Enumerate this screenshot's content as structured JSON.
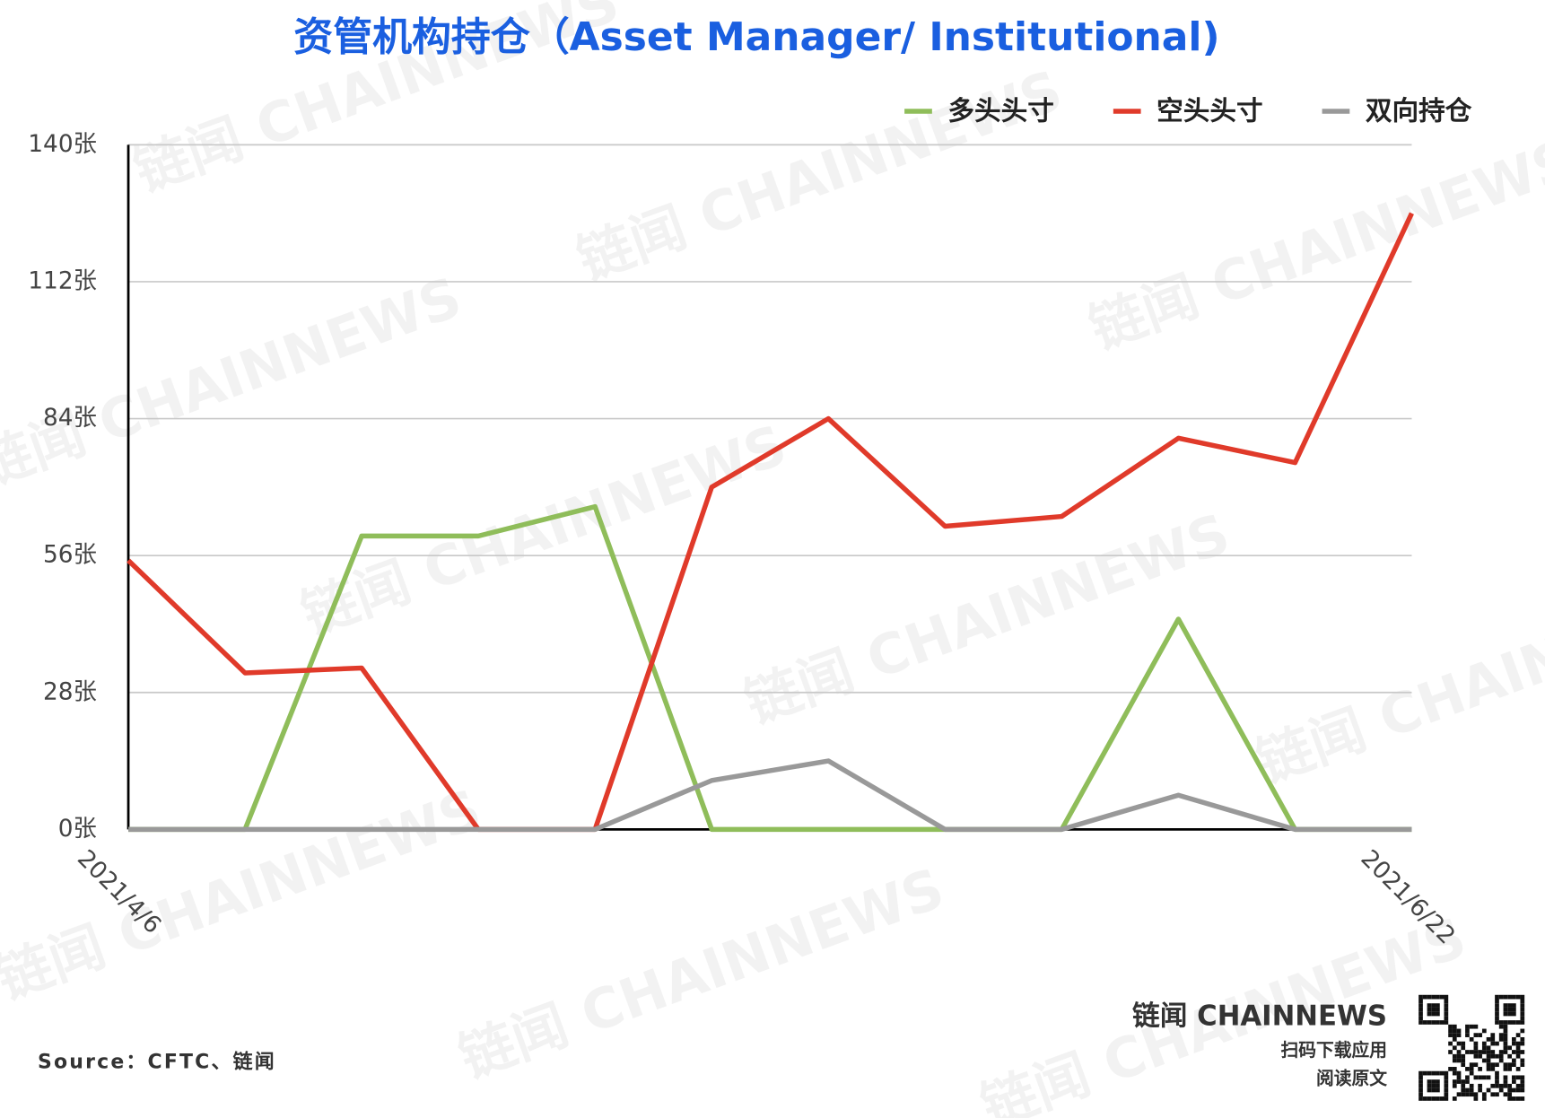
{
  "chart_data": {
    "type": "line",
    "title": "资管机构持仓（Asset Manager/ Institutional)",
    "categories": [
      "2021/4/6",
      null,
      null,
      null,
      null,
      null,
      null,
      null,
      null,
      null,
      null,
      "2021/6/22"
    ],
    "series": [
      {
        "name": "多头头寸",
        "color": "#8fbd5a",
        "values": [
          0,
          0,
          60,
          60,
          66,
          0,
          0,
          0,
          0,
          43,
          0,
          0
        ]
      },
      {
        "name": "空头头寸",
        "color": "#e03a2a",
        "values": [
          55,
          32,
          33,
          0,
          0,
          70,
          84,
          62,
          64,
          80,
          75,
          126
        ]
      },
      {
        "name": "双向持仓",
        "color": "#999999",
        "values": [
          0,
          0,
          0,
          0,
          0,
          10,
          14,
          0,
          0,
          7,
          0,
          0
        ]
      }
    ],
    "ylim": [
      0,
      140
    ],
    "yticks": [
      {
        "value": 0,
        "label": "0张"
      },
      {
        "value": 28,
        "label": "28张"
      },
      {
        "value": 56,
        "label": "56张"
      },
      {
        "value": 84,
        "label": "84张"
      },
      {
        "value": 112,
        "label": "112张"
      },
      {
        "value": 140,
        "label": "140张"
      }
    ],
    "grid": true,
    "legend": "top-right",
    "source": "Source：CFTC、链闻",
    "watermark": "链闻 CHAINNEWS",
    "brand": "链闻 CHAINNEWS",
    "qr_caption": [
      "扫码下载应用",
      "阅读原文"
    ]
  }
}
